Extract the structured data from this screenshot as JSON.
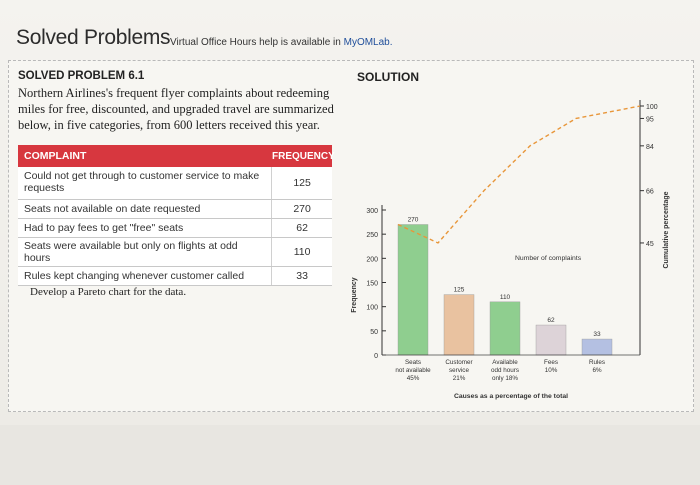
{
  "header": {
    "title": "Solved Problems",
    "subtitle_text": "Virtual Office Hours help is available in ",
    "subtitle_link": "MyOMLab."
  },
  "problem": {
    "title": "SOLVED PROBLEM 6.1",
    "description": "Northern Airlines's frequent flyer complaints about redeeming miles for free, discounted, and upgraded travel are summarized below, in five categories, from 600 letters received this year.",
    "table": {
      "headers": [
        "COMPLAINT",
        "FREQUENCY"
      ],
      "rows": [
        {
          "complaint": "Could not get through to customer service to make requests",
          "frequency": "125"
        },
        {
          "complaint": "Seats not available on date requested",
          "frequency": "270"
        },
        {
          "complaint": "Had to pay fees to get \"free\" seats",
          "frequency": "62"
        },
        {
          "complaint": "Seats were available but only on flights at odd hours",
          "frequency": "110"
        },
        {
          "complaint": "Rules kept changing whenever customer called",
          "frequency": "33"
        }
      ]
    },
    "instruction": "Develop a Pareto chart for the data."
  },
  "solution": {
    "title": "SOLUTION"
  },
  "chart_data": {
    "type": "bar",
    "categories": [
      "Seats not available 45%",
      "Customer service 21%",
      "Available odd hours only 18%",
      "Fees 10%",
      "Rules 6%"
    ],
    "category_lines": [
      [
        "Seats",
        "not available",
        "45%"
      ],
      [
        "Customer",
        "service",
        "21%"
      ],
      [
        "Available",
        "odd hours",
        "only 18%"
      ],
      [
        "Fees",
        "10%"
      ],
      [
        "Rules",
        "6%"
      ]
    ],
    "values": [
      270,
      125,
      110,
      62,
      33
    ],
    "value_labels": [
      "270",
      "125",
      "110",
      "62",
      "33"
    ],
    "bar_colors": [
      "#8fce8f",
      "#e9c2a0",
      "#8fce8f",
      "#ddd3d8",
      "#b4c0e2"
    ],
    "cumulative_percent": [
      45,
      66,
      84,
      95,
      100
    ],
    "ylabel": "Frequency",
    "ylabel_right": "Cumulative percentage",
    "xlabel": "Causes as a percentage of the total",
    "annotation": "Number of complaints",
    "y_ticks": [
      "0",
      "50",
      "100",
      "150",
      "200",
      "250",
      "300"
    ],
    "right_ticks": [
      "45",
      "66",
      "84",
      "95",
      "100"
    ],
    "ylim": [
      0,
      300
    ],
    "right_lim": [
      0,
      100
    ],
    "line_color": "#e8963a"
  }
}
